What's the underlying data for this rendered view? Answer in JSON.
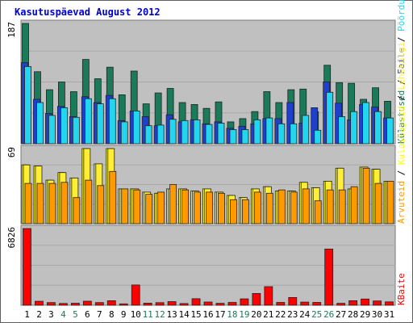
{
  "title": "Kasutuspäevad August 2012",
  "colors": {
    "background": "#c0c0c0",
    "kulastused": "#1a7a5a",
    "faile": "#1f3fcf",
    "poordumisi": "#22d6f0",
    "kulastajaid": "#ffff00",
    "lehekulgi": "#ffee33",
    "arvuteid": "#ff9900",
    "kbaite": "#ff0000"
  },
  "chart_data": [
    {
      "type": "bar",
      "panel": "top",
      "ymax_label": "187",
      "ylim": [
        0,
        187
      ],
      "right_labels": [
        "Külastused",
        "Faile",
        "Pöördumisi"
      ],
      "separator": " / ",
      "categories": [
        "1",
        "2",
        "3",
        "4",
        "5",
        "6",
        "7",
        "8",
        "9",
        "10",
        "11",
        "12",
        "13",
        "14",
        "15",
        "16",
        "17",
        "18",
        "19",
        "20",
        "21",
        "22",
        "23",
        "24",
        "25",
        "26",
        "27",
        "28",
        "29",
        "30",
        "31"
      ],
      "series": [
        {
          "name": "Külastused",
          "values": [
            187,
            112,
            84,
            96,
            81,
            131,
            101,
            119,
            76,
            113,
            62,
            79,
            86,
            64,
            61,
            55,
            65,
            34,
            39,
            50,
            81,
            64,
            84,
            85,
            50,
            122,
            95,
            94,
            69,
            87,
            66
          ]
        },
        {
          "name": "Faile",
          "values": [
            126,
            69,
            47,
            58,
            42,
            73,
            64,
            75,
            36,
            51,
            42,
            28,
            45,
            34,
            37,
            31,
            34,
            24,
            27,
            31,
            39,
            39,
            64,
            32,
            56,
            96,
            63,
            37,
            61,
            57,
            40
          ]
        },
        {
          "name": "Pöördumisi",
          "values": [
            120,
            64,
            44,
            56,
            41,
            70,
            62,
            70,
            34,
            51,
            28,
            29,
            38,
            36,
            37,
            30,
            32,
            22,
            22,
            37,
            40,
            31,
            31,
            44,
            21,
            80,
            42,
            50,
            64,
            50,
            40
          ]
        }
      ]
    },
    {
      "type": "bar",
      "panel": "middle",
      "ymax_label": "69",
      "ylim": [
        0,
        69
      ],
      "right_labels": [
        "Arvuteid",
        "Külastajaid",
        "Lehekülgi"
      ],
      "separator": " / ",
      "categories": [
        "1",
        "2",
        "3",
        "4",
        "5",
        "6",
        "7",
        "8",
        "9",
        "10",
        "11",
        "12",
        "13",
        "14",
        "15",
        "16",
        "17",
        "18",
        "19",
        "20",
        "21",
        "22",
        "23",
        "24",
        "25",
        "26",
        "27",
        "28",
        "29",
        "30",
        "31"
      ],
      "series": [
        {
          "name": "Külastajaid",
          "values": [
            54,
            53,
            40,
            47,
            42,
            69,
            55,
            69,
            32,
            32,
            29,
            28,
            32,
            32,
            30,
            32,
            29,
            26,
            24,
            32,
            34,
            30,
            30,
            38,
            33,
            39,
            51,
            32,
            52,
            50,
            39
          ]
        },
        {
          "name": "Lehekülgi",
          "values": [
            54,
            53,
            40,
            47,
            42,
            69,
            55,
            69,
            32,
            32,
            29,
            28,
            32,
            32,
            30,
            32,
            29,
            26,
            24,
            32,
            34,
            30,
            30,
            38,
            33,
            39,
            51,
            32,
            52,
            50,
            39
          ]
        },
        {
          "name": "Arvuteid",
          "values": [
            37,
            37,
            37,
            38,
            24,
            40,
            35,
            48,
            32,
            31,
            27,
            29,
            36,
            31,
            29,
            29,
            28,
            22,
            22,
            29,
            28,
            31,
            29,
            32,
            21,
            31,
            31,
            34,
            51,
            37,
            39
          ]
        }
      ]
    },
    {
      "type": "bar",
      "panel": "bottom",
      "ymax_label": "6826",
      "ylim": [
        0,
        6826
      ],
      "right_labels": [
        "KBaite"
      ],
      "separator": " / ",
      "categories": [
        "1",
        "2",
        "3",
        "4",
        "5",
        "6",
        "7",
        "8",
        "9",
        "10",
        "11",
        "12",
        "13",
        "14",
        "15",
        "16",
        "17",
        "18",
        "19",
        "20",
        "21",
        "22",
        "23",
        "24",
        "25",
        "26",
        "27",
        "28",
        "29",
        "30",
        "31"
      ],
      "series": [
        {
          "name": "KBaite",
          "values": [
            6826,
            355,
            240,
            160,
            180,
            360,
            240,
            400,
            120,
            1800,
            190,
            230,
            320,
            150,
            580,
            290,
            170,
            250,
            570,
            1050,
            1650,
            250,
            690,
            280,
            250,
            5000,
            170,
            400,
            550,
            380,
            300
          ]
        }
      ]
    }
  ],
  "x_label_colors": [
    "#000000",
    "#000000",
    "#000000",
    "#1a7a5a",
    "#1a7a5a",
    "#000000",
    "#000000",
    "#000000",
    "#000000",
    "#000000",
    "#1a7a5a",
    "#1a7a5a",
    "#000000",
    "#000000",
    "#000000",
    "#000000",
    "#000000",
    "#1a7a5a",
    "#1a7a5a",
    "#000000",
    "#000000",
    "#000000",
    "#000000",
    "#000000",
    "#1a7a5a",
    "#1a7a5a",
    "#000000",
    "#000000",
    "#000000",
    "#000000",
    "#000000"
  ]
}
